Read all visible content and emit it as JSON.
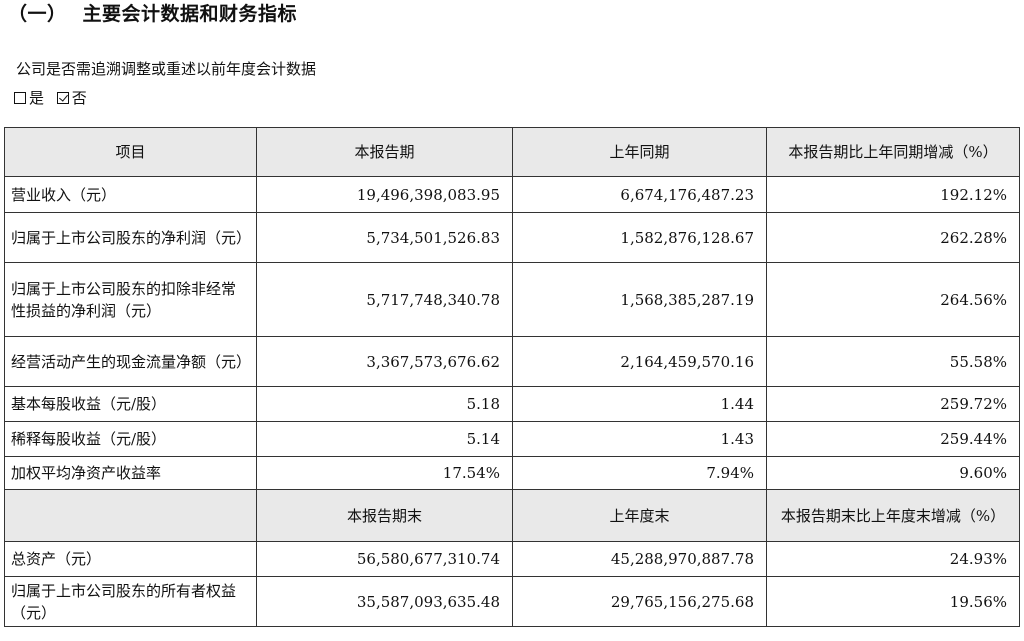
{
  "section": {
    "number": "（一）",
    "title": "主要会计数据和财务指标"
  },
  "question": {
    "text": "公司是否需追溯调整或重述以前年度会计数据",
    "options": [
      {
        "label": "是",
        "checked": false
      },
      {
        "label": "否",
        "checked": true
      }
    ]
  },
  "table": {
    "header1": [
      "项目",
      "本报告期",
      "上年同期",
      "本报告期比上年同期增减（%）"
    ],
    "rows1": [
      {
        "label": "营业收入（元）",
        "current": "19,496,398,083.95",
        "prior": "6,674,176,487.23",
        "change": "192.12%"
      },
      {
        "label": "归属于上市公司股东的净利润（元）",
        "current": "5,734,501,526.83",
        "prior": "1,582,876,128.67",
        "change": "262.28%"
      },
      {
        "label": "归属于上市公司股东的扣除非经常性损益的净利润（元）",
        "current": "5,717,748,340.78",
        "prior": "1,568,385,287.19",
        "change": "264.56%"
      },
      {
        "label": "经营活动产生的现金流量净额（元）",
        "current": "3,367,573,676.62",
        "prior": "2,164,459,570.16",
        "change": "55.58%"
      },
      {
        "label": "基本每股收益（元/股）",
        "current": "5.18",
        "prior": "1.44",
        "change": "259.72%"
      },
      {
        "label": "稀释每股收益（元/股）",
        "current": "5.14",
        "prior": "1.43",
        "change": "259.44%"
      },
      {
        "label": "加权平均净资产收益率",
        "current": "17.54%",
        "prior": "7.94%",
        "change": "9.60%"
      }
    ],
    "header2": [
      "",
      "本报告期末",
      "上年度末",
      "本报告期末比上年度末增减（%）"
    ],
    "rows2": [
      {
        "label": "总资产（元）",
        "current": "56,580,677,310.74",
        "prior": "45,288,970,887.78",
        "change": "24.93%"
      },
      {
        "label": "归属于上市公司股东的所有者权益（元）",
        "current": "35,587,093,635.48",
        "prior": "29,765,156,275.68",
        "change": "19.56%"
      }
    ]
  }
}
